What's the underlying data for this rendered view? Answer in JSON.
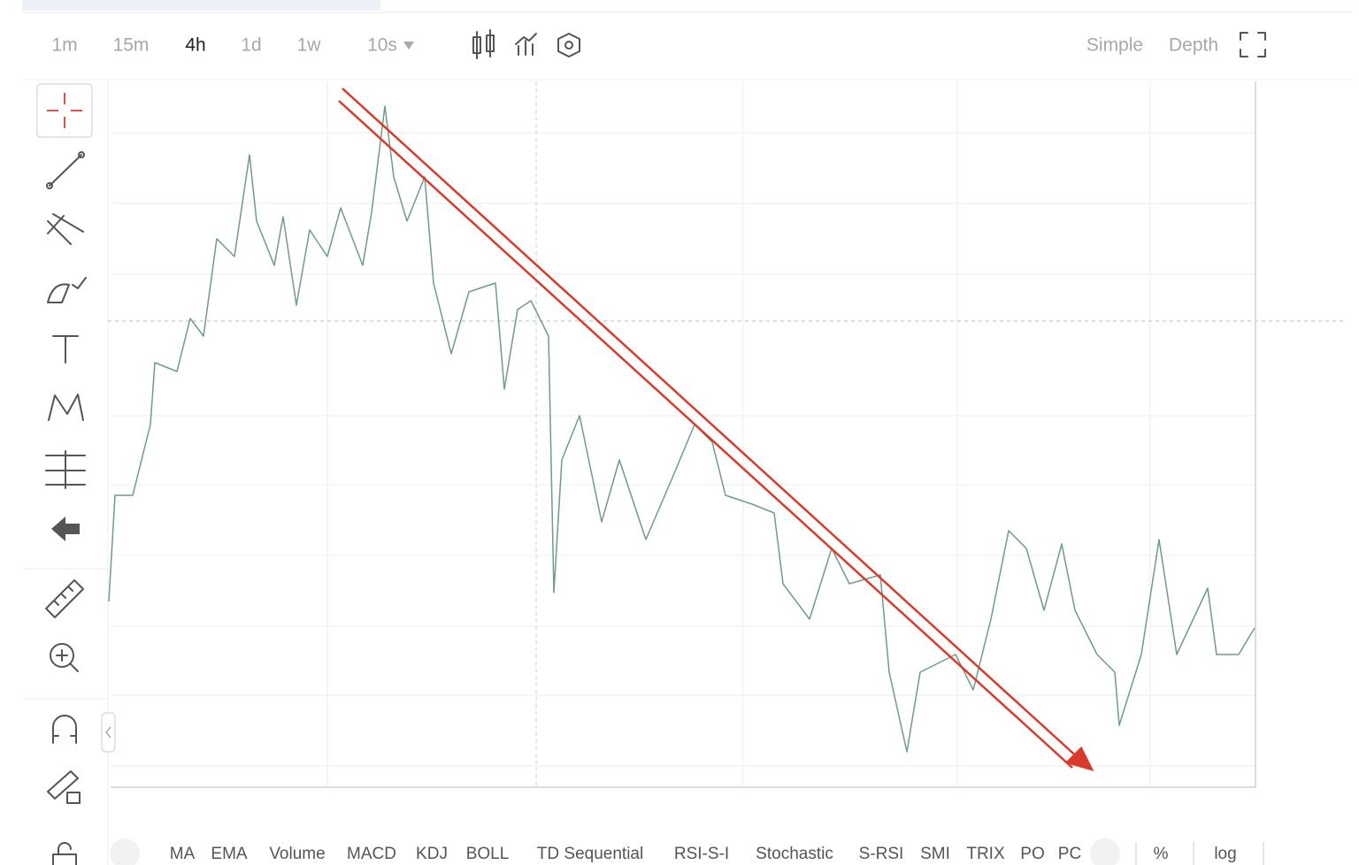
{
  "timeframes": [
    "1m",
    "15m",
    "4h",
    "1d",
    "1w"
  ],
  "interval": "10s",
  "view_modes": [
    "Simple",
    "Depth"
  ],
  "indicators": [
    "MA",
    "EMA",
    "Volume",
    "MACD",
    "KDJ",
    "BOLL",
    "TD Sequential",
    "RSI-S-I",
    "Stochastic",
    "S-RSI",
    "SMI",
    "TRIX",
    "PO",
    "PC"
  ],
  "options": [
    "%",
    "log"
  ]
}
